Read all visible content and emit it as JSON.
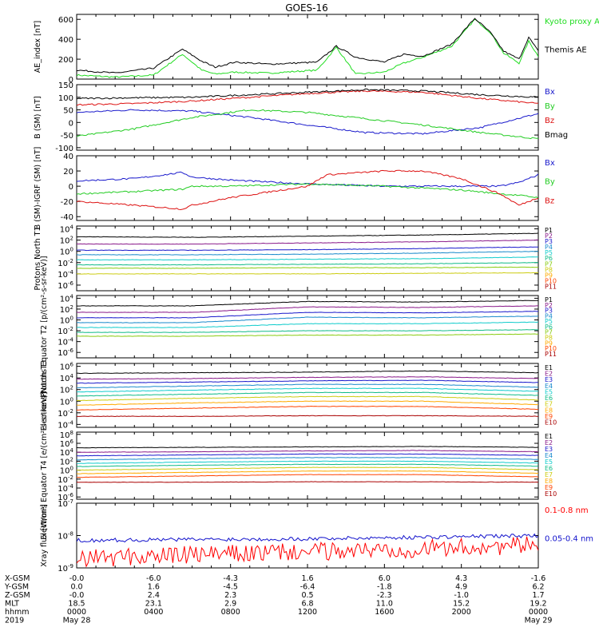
{
  "title": "GOES-16",
  "chart_data": [
    {
      "type": "line",
      "ylabel": "AE_index [nT]",
      "yscale": "linear",
      "ylim": [
        0,
        650
      ],
      "yticks": [
        "0",
        "200",
        "400",
        "600"
      ],
      "series": [
        {
          "name": "Kyoto proxy AE",
          "color": "#22dd22",
          "x": [
            0,
            2,
            4,
            5.5,
            6.5,
            7.2,
            8.2,
            10,
            12.5,
            13.5,
            14.5,
            16,
            17,
            18,
            19.5,
            20.7,
            21.5,
            22.2,
            23,
            23.5,
            24
          ],
          "y": [
            40,
            20,
            40,
            250,
            90,
            50,
            70,
            60,
            90,
            320,
            50,
            70,
            160,
            220,
            330,
            600,
            470,
            260,
            160,
            380,
            230
          ]
        },
        {
          "name": "Themis AE",
          "color": "#000000",
          "x": [
            0,
            2,
            4,
            5.5,
            6.5,
            7.2,
            8.2,
            10,
            12.5,
            13.5,
            14.5,
            16,
            17,
            18,
            19.5,
            20.7,
            21.5,
            22.2,
            23,
            23.5,
            24
          ],
          "y": [
            90,
            60,
            110,
            300,
            180,
            120,
            170,
            150,
            170,
            330,
            220,
            170,
            250,
            230,
            350,
            610,
            470,
            280,
            200,
            420,
            280
          ]
        }
      ]
    },
    {
      "type": "line",
      "ylabel": "B (SM) [nT]",
      "yscale": "linear",
      "ylim": [
        -110,
        150
      ],
      "yticks": [
        "-100",
        "-50",
        "0",
        "50",
        "100",
        "150"
      ],
      "series": [
        {
          "name": "Bx",
          "color": "#1a1acc",
          "x": [
            0,
            3,
            6,
            9,
            12,
            15,
            18,
            21,
            24
          ],
          "y": [
            40,
            50,
            45,
            20,
            -10,
            -40,
            -45,
            -20,
            35
          ]
        },
        {
          "name": "By",
          "color": "#22cc22",
          "x": [
            0,
            3,
            6,
            9,
            12,
            15,
            18,
            21,
            24
          ],
          "y": [
            -55,
            -25,
            20,
            50,
            40,
            15,
            -10,
            -40,
            -65
          ]
        },
        {
          "name": "Bz",
          "color": "#dd1111",
          "x": [
            0,
            3,
            6,
            9,
            12,
            15,
            18,
            21,
            24
          ],
          "y": [
            70,
            75,
            85,
            100,
            115,
            125,
            120,
            95,
            75
          ]
        },
        {
          "name": "Bmag",
          "color": "#000000",
          "x": [
            0,
            3,
            6,
            9,
            12,
            15,
            18,
            21,
            24
          ],
          "y": [
            95,
            98,
            100,
            110,
            120,
            130,
            125,
            110,
            100
          ]
        }
      ]
    },
    {
      "type": "line",
      "ylabel": "B (SM)-IGRF (SM) [nT]",
      "yscale": "linear",
      "ylim": [
        -45,
        40
      ],
      "yticks": [
        "-40",
        "-20",
        "0",
        "20",
        "40"
      ],
      "series": [
        {
          "name": "Bx",
          "color": "#1a1acc",
          "x": [
            0,
            3,
            5.5,
            6,
            8,
            12,
            16,
            20,
            22,
            23,
            24
          ],
          "y": [
            7,
            10,
            18,
            12,
            8,
            3,
            0,
            0,
            0,
            5,
            15
          ]
        },
        {
          "name": "By",
          "color": "#22cc22",
          "x": [
            0,
            3,
            5.5,
            6,
            8,
            12,
            16,
            20,
            22,
            23,
            24
          ],
          "y": [
            -10,
            -7,
            -4,
            0,
            0,
            3,
            0,
            -5,
            -10,
            -12,
            -15
          ]
        },
        {
          "name": "Bz",
          "color": "#dd1111",
          "x": [
            0,
            3,
            5.5,
            6,
            8,
            12,
            13,
            16,
            18,
            20,
            22,
            23,
            24
          ],
          "y": [
            -20,
            -25,
            -30,
            -25,
            -15,
            0,
            15,
            20,
            20,
            10,
            -10,
            -25,
            -15
          ]
        }
      ]
    },
    {
      "type": "line",
      "ylabel": "Protons North T1",
      "yscale": "log",
      "ylim_log10": [
        -7,
        4.5
      ],
      "yticks": [
        "10^4",
        "10^2",
        "10^0",
        "10^-2",
        "10^-4",
        "10^-6"
      ],
      "legend": [
        "P1",
        "P2",
        "P3",
        "P4",
        "P5",
        "P6",
        "P7",
        "P8",
        "P9",
        "P10",
        "P11"
      ],
      "legend_colors": [
        "#000000",
        "#8a1a8a",
        "#1a1acc",
        "#1a8acc",
        "#11cccc",
        "#11bb88",
        "#88cc11",
        "#cccc11",
        "#ffaa00",
        "#ff4400",
        "#aa0000"
      ],
      "series": [
        {
          "name": "P1",
          "color": "#000000",
          "log10_levels": [
            2.6,
            2.5,
            2.7,
            2.9,
            3.2
          ]
        },
        {
          "name": "P2",
          "color": "#8a1a8a",
          "log10_levels": [
            1.3,
            1.3,
            1.5,
            1.7,
            2.0
          ]
        },
        {
          "name": "P3",
          "color": "#1a1acc",
          "log10_levels": [
            0.2,
            0.2,
            0.3,
            0.5,
            0.8
          ]
        },
        {
          "name": "P4",
          "color": "#1a8acc",
          "log10_levels": [
            -0.6,
            -0.6,
            -0.5,
            -0.3,
            0.0
          ]
        },
        {
          "name": "P5",
          "color": "#11cccc",
          "log10_levels": [
            -1.5,
            -1.5,
            -1.4,
            -1.3,
            -1.0
          ]
        },
        {
          "name": "P6",
          "color": "#11bb88",
          "log10_levels": [
            -2.4,
            -2.4,
            -2.3,
            -2.2,
            -2.0
          ]
        },
        {
          "name": "P7",
          "color": "#88cc11",
          "log10_levels": [
            -3.0,
            -3.0,
            -2.9,
            -2.9,
            -2.8
          ]
        },
        {
          "name": "P8",
          "color": "#cccc11",
          "log10_levels": [
            -4.0,
            -4.0,
            -4.0,
            -3.9,
            -3.8
          ]
        }
      ]
    },
    {
      "type": "line",
      "ylabel": "Protons Equator T2 [p/(cm²-s-sr-keV)]",
      "yscale": "log",
      "ylim_log10": [
        -7,
        4.5
      ],
      "yticks": [
        "10^4",
        "10^2",
        "10^0",
        "10^-2",
        "10^-4",
        "10^-6"
      ],
      "legend": [
        "P1",
        "P2",
        "P3",
        "P4",
        "P5",
        "P6",
        "P7",
        "P8",
        "P9",
        "P10",
        "P11"
      ],
      "legend_colors": [
        "#000000",
        "#8a1a8a",
        "#1a1acc",
        "#1a8acc",
        "#11cccc",
        "#11bb88",
        "#88cc11",
        "#cccc11",
        "#ffaa00",
        "#ff4400",
        "#aa0000"
      ],
      "series": [
        {
          "name": "P1",
          "color": "#000000",
          "log10_levels": [
            2.6,
            2.6,
            3.4,
            3.3,
            3.6
          ]
        },
        {
          "name": "P2",
          "color": "#8a1a8a",
          "log10_levels": [
            1.4,
            1.4,
            2.4,
            2.3,
            2.6
          ]
        },
        {
          "name": "P3",
          "color": "#1a1acc",
          "log10_levels": [
            0.4,
            0.4,
            1.4,
            1.3,
            1.6
          ]
        },
        {
          "name": "P4",
          "color": "#1a8acc",
          "log10_levels": [
            -0.5,
            -0.5,
            0.5,
            0.4,
            0.7
          ]
        },
        {
          "name": "P5",
          "color": "#11cccc",
          "log10_levels": [
            -1.4,
            -1.4,
            -0.7,
            -0.7,
            -0.4
          ]
        },
        {
          "name": "P6",
          "color": "#11bb88",
          "log10_levels": [
            -2.3,
            -2.3,
            -2.0,
            -2.0,
            -1.8
          ]
        },
        {
          "name": "P7",
          "color": "#88cc11",
          "log10_levels": [
            -3.0,
            -3.0,
            -2.8,
            -2.8,
            -2.6
          ]
        }
      ]
    },
    {
      "type": "line",
      "ylabel": "Electrons North T3",
      "yscale": "log",
      "ylim_log10": [
        -4.5,
        6.5
      ],
      "yticks": [
        "10^6",
        "10^4",
        "10^2",
        "10^0",
        "10^-2",
        "10^-4"
      ],
      "legend": [
        "E1",
        "E2",
        "E3",
        "E4",
        "E5",
        "E6",
        "E7",
        "E8",
        "E9",
        "E10"
      ],
      "legend_colors": [
        "#000000",
        "#8a1a8a",
        "#1a1acc",
        "#1a8acc",
        "#11cccc",
        "#11bb88",
        "#cccc11",
        "#ffaa00",
        "#ff4400",
        "#aa0000"
      ],
      "series": [
        {
          "name": "E1",
          "color": "#000000",
          "log10_levels": [
            4.8,
            4.9,
            5.0,
            5.2,
            4.9
          ]
        },
        {
          "name": "E2",
          "color": "#8a1a8a",
          "log10_levels": [
            3.8,
            3.9,
            4.1,
            4.2,
            3.9
          ]
        },
        {
          "name": "E3",
          "color": "#1a1acc",
          "log10_levels": [
            3.1,
            3.3,
            3.5,
            3.6,
            3.2
          ]
        },
        {
          "name": "E4",
          "color": "#1a8acc",
          "log10_levels": [
            2.3,
            2.6,
            2.9,
            2.9,
            2.4
          ]
        },
        {
          "name": "E5",
          "color": "#11cccc",
          "log10_levels": [
            1.6,
            1.9,
            2.2,
            2.2,
            1.7
          ]
        },
        {
          "name": "E6",
          "color": "#11bb88",
          "log10_levels": [
            0.9,
            1.2,
            1.5,
            1.5,
            1.0
          ]
        },
        {
          "name": "E7",
          "color": "#cccc11",
          "log10_levels": [
            0.1,
            0.5,
            0.8,
            0.8,
            0.2
          ]
        },
        {
          "name": "E8",
          "color": "#ffaa00",
          "log10_levels": [
            -0.7,
            -0.3,
            0.0,
            0.0,
            -0.6
          ]
        },
        {
          "name": "E9",
          "color": "#ff4400",
          "log10_levels": [
            -1.5,
            -1.2,
            -0.9,
            -0.9,
            -1.4
          ]
        },
        {
          "name": "E10",
          "color": "#aa0000",
          "log10_levels": [
            -2.6,
            -2.6,
            -2.5,
            -2.5,
            -2.6
          ]
        }
      ]
    },
    {
      "type": "line",
      "ylabel": "Electrons Equator T4 [e/(cm²-s-sr-keV)]",
      "yscale": "log",
      "ylim_log10": [
        -6.5,
        8.5
      ],
      "yticks": [
        "10^8",
        "10^6",
        "10^4",
        "10^2",
        "10^0",
        "10^-2",
        "10^-4",
        "10^-6"
      ],
      "legend": [
        "E1",
        "E2",
        "E3",
        "E4",
        "E5",
        "E6",
        "E7",
        "E8",
        "E9",
        "E10"
      ],
      "legend_colors": [
        "#000000",
        "#8a1a8a",
        "#1a1acc",
        "#1a8acc",
        "#11cccc",
        "#11bb88",
        "#cccc11",
        "#ffaa00",
        "#ff4400",
        "#aa0000"
      ],
      "series": [
        {
          "name": "E1",
          "color": "#000000",
          "log10_levels": [
            5.0,
            5.1,
            5.2,
            5.3,
            5.1
          ]
        },
        {
          "name": "E2",
          "color": "#8a1a8a",
          "log10_levels": [
            4.0,
            4.1,
            4.3,
            4.4,
            4.1
          ]
        },
        {
          "name": "E3",
          "color": "#1a1acc",
          "log10_levels": [
            3.2,
            3.4,
            3.6,
            3.6,
            3.3
          ]
        },
        {
          "name": "E4",
          "color": "#1a8acc",
          "log10_levels": [
            2.3,
            2.6,
            2.8,
            2.8,
            2.4
          ]
        },
        {
          "name": "E5",
          "color": "#11cccc",
          "log10_levels": [
            1.5,
            1.8,
            2.0,
            2.0,
            1.6
          ]
        },
        {
          "name": "E6",
          "color": "#11bb88",
          "log10_levels": [
            0.8,
            1.1,
            1.3,
            1.3,
            0.9
          ]
        },
        {
          "name": "E7",
          "color": "#cccc11",
          "log10_levels": [
            0.0,
            0.3,
            0.6,
            0.6,
            0.1
          ]
        },
        {
          "name": "E8",
          "color": "#ffaa00",
          "log10_levels": [
            -0.8,
            -0.5,
            -0.2,
            -0.2,
            -0.7
          ]
        },
        {
          "name": "E9",
          "color": "#ff4400",
          "log10_levels": [
            -1.6,
            -1.3,
            -1.0,
            -1.0,
            -1.5
          ]
        },
        {
          "name": "E10",
          "color": "#aa0000",
          "log10_levels": [
            -2.7,
            -2.7,
            -2.6,
            -2.6,
            -2.7
          ]
        }
      ]
    },
    {
      "type": "line",
      "ylabel": "Xray flux [W/m²]",
      "yscale": "log",
      "ylim_log10": [
        -9,
        -7
      ],
      "yticks": [
        "10^-7",
        "10^-8",
        "10^-9"
      ],
      "series": [
        {
          "name": "0.1-0.8 nm",
          "color": "#ff0000",
          "log10_levels": [
            -8.7,
            -8.6,
            -8.5,
            -8.4,
            -8.3
          ]
        },
        {
          "name": "0.05-0.4 nm",
          "color": "#1111cc",
          "log10_levels": [
            -8.15,
            -8.12,
            -8.1,
            -8.05,
            -8.0
          ]
        }
      ]
    }
  ],
  "x_axis": {
    "range_hours": [
      0,
      24
    ],
    "ticks": [
      "0000",
      "0400",
      "0800",
      "1200",
      "1600",
      "2000",
      "0000"
    ],
    "rows": [
      {
        "label": "X-GSM",
        "values": [
          "-0.0",
          "-6.0",
          "-4.3",
          "1.6",
          "6.0",
          "4.3",
          "-1.6"
        ]
      },
      {
        "label": "Y-GSM",
        "values": [
          "0.0",
          "1.6",
          "-4.5",
          "-6.4",
          "-1.8",
          "4.9",
          "6.2"
        ]
      },
      {
        "label": "Z-GSM",
        "values": [
          "-0.0",
          "2.4",
          "2.3",
          "0.5",
          "-2.3",
          "-1.0",
          "1.7"
        ]
      },
      {
        "label": "MLT",
        "values": [
          "18.5",
          "23.1",
          "2.9",
          "6.8",
          "11.0",
          "15.2",
          "19.2"
        ]
      },
      {
        "label": "hhmm",
        "values": [
          "0000",
          "0400",
          "0800",
          "1200",
          "1600",
          "2000",
          "0000"
        ]
      }
    ],
    "year": "2019",
    "start_date": "May 28",
    "end_date": "May 29"
  }
}
